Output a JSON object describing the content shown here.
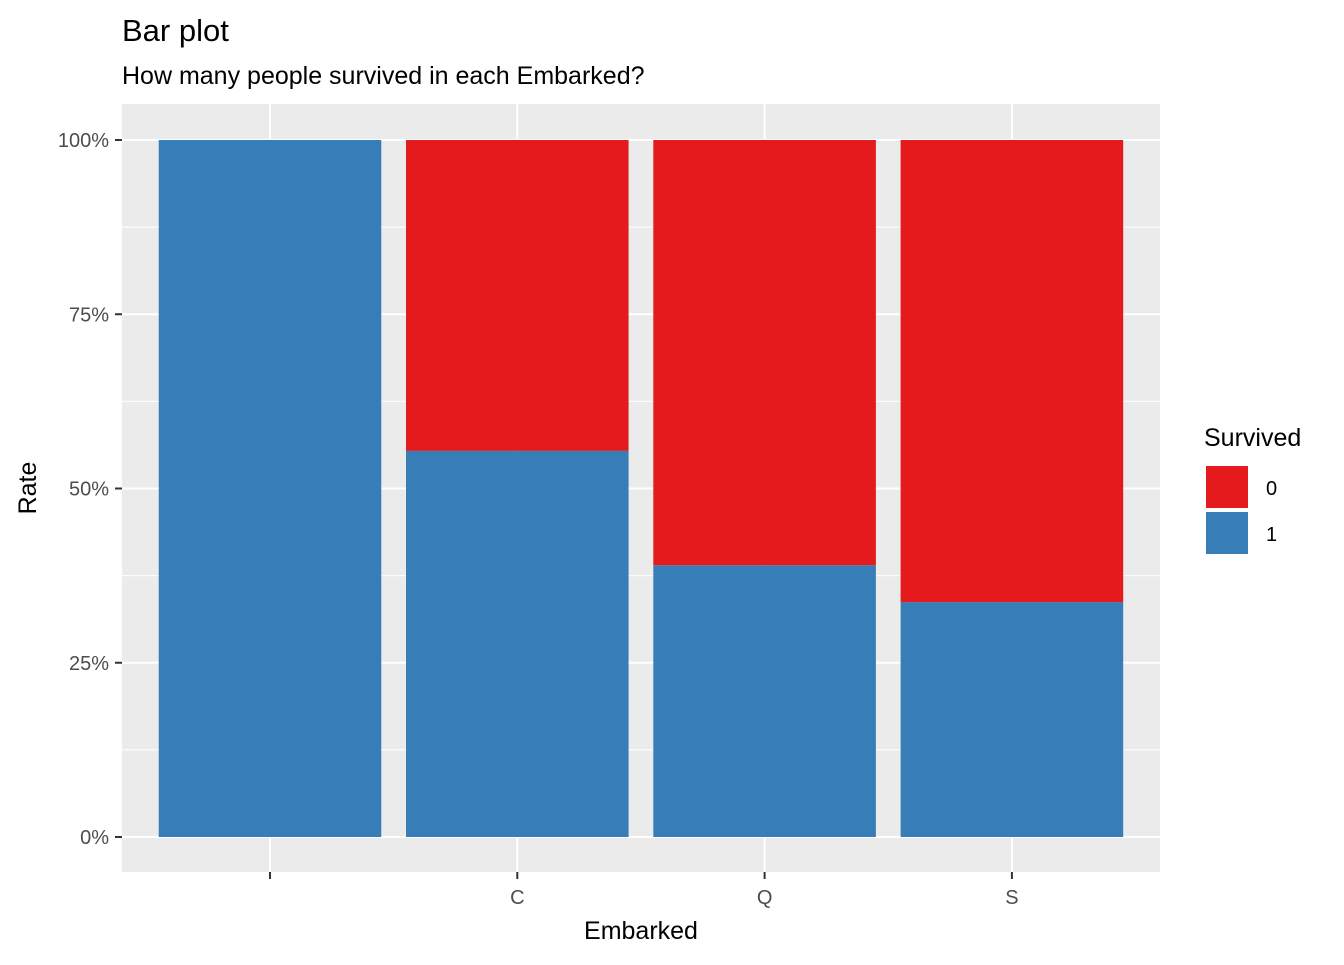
{
  "chart_data": {
    "type": "bar",
    "stacked": true,
    "normalized": true,
    "title": "Bar plot",
    "subtitle": "How many people survived in each Embarked?",
    "xlabel": "Embarked",
    "ylabel": "Rate",
    "categories": [
      "",
      "C",
      "Q",
      "S"
    ],
    "y_ticks": [
      "0%",
      "25%",
      "50%",
      "75%",
      "100%"
    ],
    "ylim": [
      0,
      1
    ],
    "grid": true,
    "legend": {
      "title": "Survived",
      "position": "right",
      "entries": [
        "0",
        "1"
      ]
    },
    "series": [
      {
        "name": "1",
        "color": "#377EB8",
        "values": [
          1.0,
          0.554,
          0.39,
          0.337
        ]
      },
      {
        "name": "0",
        "color": "#E41A1C",
        "values": [
          0.0,
          0.446,
          0.61,
          0.663
        ]
      }
    ],
    "panel_background": "#EBEBEB",
    "grid_color": "#FFFFFF"
  }
}
